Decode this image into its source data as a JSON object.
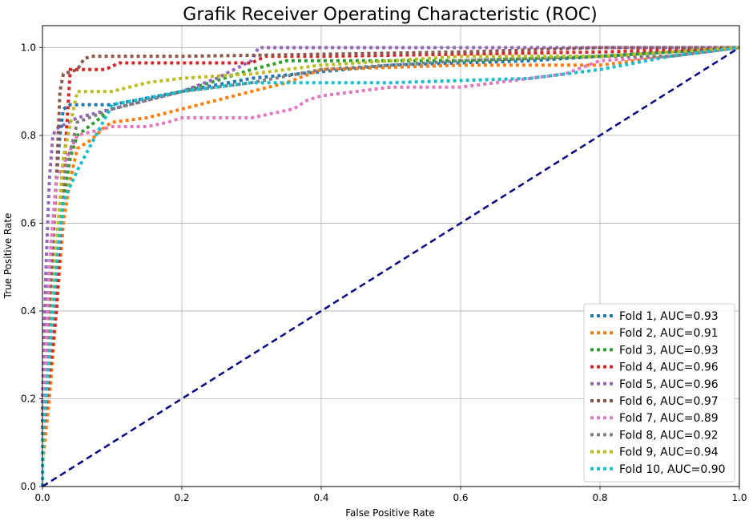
{
  "chart_data": {
    "type": "line",
    "title": "Grafik Receiver Operating Characteristic (ROC)",
    "xlabel": "False Positive Rate",
    "ylabel": "True Positive Rate",
    "xlim": [
      0.0,
      1.0
    ],
    "ylim": [
      0.0,
      1.05
    ],
    "x_ticks": [
      "0.0",
      "0.2",
      "0.4",
      "0.6",
      "0.8",
      "1.0"
    ],
    "y_ticks": [
      "0.0",
      "0.2",
      "0.4",
      "0.6",
      "0.8",
      "1.0"
    ],
    "grid": true,
    "legend_position": "bottom-right",
    "diagonal": {
      "x": [
        0,
        1
      ],
      "y": [
        0,
        1
      ],
      "color": "#000080",
      "style": "dashed"
    },
    "series": [
      {
        "name": "Fold 1, AUC=0.93",
        "color": "#1f77b4",
        "x": [
          0,
          0,
          0.005,
          0.01,
          0.015,
          0.02,
          0.025,
          0.03,
          0.04,
          0.05,
          0.1,
          0.2,
          0.3,
          0.5,
          0.7,
          0.8,
          0.9,
          1.0
        ],
        "y": [
          0,
          0.1,
          0.3,
          0.5,
          0.6,
          0.7,
          0.8,
          0.86,
          0.87,
          0.87,
          0.87,
          0.9,
          0.93,
          0.96,
          0.97,
          0.98,
          0.99,
          1.0
        ]
      },
      {
        "name": "Fold 2, AUC=0.91",
        "color": "#ff7f0e",
        "x": [
          0,
          0,
          0.01,
          0.02,
          0.03,
          0.04,
          0.05,
          0.07,
          0.09,
          0.1,
          0.15,
          0.2,
          0.25,
          0.3,
          0.35,
          0.4,
          0.6,
          0.8,
          0.9,
          1.0
        ],
        "y": [
          0,
          0.05,
          0.2,
          0.4,
          0.6,
          0.7,
          0.77,
          0.79,
          0.82,
          0.83,
          0.84,
          0.86,
          0.88,
          0.9,
          0.92,
          0.95,
          0.96,
          0.96,
          0.98,
          1.0
        ]
      },
      {
        "name": "Fold 3, AUC=0.93",
        "color": "#2ca02c",
        "x": [
          0,
          0,
          0.01,
          0.02,
          0.03,
          0.04,
          0.05,
          0.1,
          0.2,
          0.3,
          0.35,
          0.4,
          0.6,
          0.8,
          1.0
        ],
        "y": [
          0,
          0.1,
          0.3,
          0.5,
          0.65,
          0.75,
          0.8,
          0.86,
          0.9,
          0.95,
          0.97,
          0.97,
          0.97,
          0.98,
          1.0
        ]
      },
      {
        "name": "Fold 4, AUC=0.96",
        "color": "#d62728",
        "x": [
          0,
          0,
          0.01,
          0.02,
          0.025,
          0.03,
          0.04,
          0.09,
          0.11,
          0.2,
          0.3,
          0.32,
          0.4,
          0.8,
          1.0
        ],
        "y": [
          0,
          0.1,
          0.25,
          0.4,
          0.55,
          0.7,
          0.95,
          0.95,
          0.965,
          0.965,
          0.965,
          0.98,
          0.98,
          0.99,
          1.0
        ]
      },
      {
        "name": "Fold 5, AUC=0.96",
        "color": "#9467bd",
        "x": [
          0,
          0,
          0.005,
          0.01,
          0.015,
          0.02,
          0.05,
          0.1,
          0.2,
          0.25,
          0.3,
          0.31,
          0.4,
          0.6,
          0.8,
          1.0
        ],
        "y": [
          0,
          0.2,
          0.5,
          0.7,
          0.8,
          0.815,
          0.84,
          0.86,
          0.9,
          0.93,
          0.97,
          1.0,
          1.0,
          1.0,
          1.0,
          1.0
        ]
      },
      {
        "name": "Fold 6, AUC=0.97",
        "color": "#8c564b",
        "x": [
          0,
          0,
          0.01,
          0.02,
          0.025,
          0.03,
          0.05,
          0.06,
          0.07,
          0.2,
          0.4,
          0.6,
          0.8,
          1.0
        ],
        "y": [
          0,
          0.15,
          0.4,
          0.7,
          0.9,
          0.94,
          0.95,
          0.975,
          0.98,
          0.98,
          0.985,
          0.99,
          1.0,
          1.0
        ]
      },
      {
        "name": "Fold 7, AUC=0.89",
        "color": "#e377c2",
        "x": [
          0,
          0,
          0.005,
          0.01,
          0.02,
          0.05,
          0.1,
          0.15,
          0.18,
          0.2,
          0.3,
          0.36,
          0.38,
          0.4,
          0.5,
          0.6,
          0.75,
          0.8,
          0.9,
          1.0
        ],
        "y": [
          0,
          0.1,
          0.3,
          0.5,
          0.7,
          0.8,
          0.82,
          0.82,
          0.83,
          0.84,
          0.84,
          0.86,
          0.88,
          0.89,
          0.91,
          0.91,
          0.94,
          0.97,
          0.98,
          1.0
        ]
      },
      {
        "name": "Fold 8, AUC=0.92",
        "color": "#7f7f7f",
        "x": [
          0,
          0,
          0.01,
          0.02,
          0.03,
          0.05,
          0.1,
          0.15,
          0.2,
          0.3,
          0.4,
          0.6,
          0.8,
          0.9,
          1.0
        ],
        "y": [
          0,
          0.1,
          0.3,
          0.55,
          0.7,
          0.83,
          0.86,
          0.88,
          0.9,
          0.92,
          0.95,
          0.97,
          0.98,
          0.98,
          1.0
        ]
      },
      {
        "name": "Fold 9, AUC=0.94",
        "color": "#bcbd22",
        "x": [
          0,
          0,
          0.01,
          0.02,
          0.03,
          0.05,
          0.1,
          0.15,
          0.2,
          0.3,
          0.4,
          0.6,
          0.8,
          1.0
        ],
        "y": [
          0,
          0.1,
          0.3,
          0.55,
          0.75,
          0.9,
          0.9,
          0.92,
          0.93,
          0.94,
          0.96,
          0.98,
          0.98,
          1.0
        ]
      },
      {
        "name": "Fold 10, AUC=0.90",
        "color": "#17becf",
        "x": [
          0,
          0,
          0.01,
          0.02,
          0.03,
          0.05,
          0.1,
          0.2,
          0.3,
          0.35,
          0.4,
          0.5,
          0.7,
          0.8,
          0.9,
          1.0
        ],
        "y": [
          0,
          0.1,
          0.3,
          0.5,
          0.65,
          0.72,
          0.87,
          0.9,
          0.92,
          0.92,
          0.92,
          0.92,
          0.93,
          0.95,
          0.98,
          1.0
        ]
      }
    ]
  }
}
